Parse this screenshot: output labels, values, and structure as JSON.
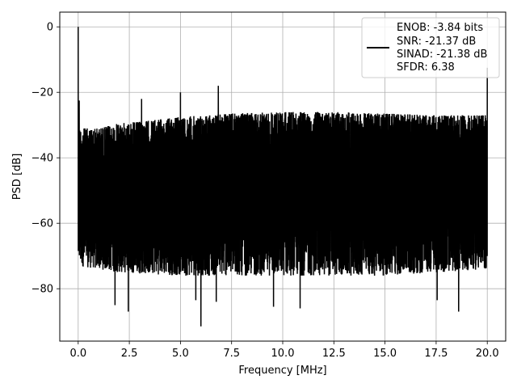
{
  "chart_data": {
    "type": "line",
    "xlabel": "Frequency [MHz]",
    "ylabel": "PSD [dB]",
    "xlim": [
      -0.9,
      20.9
    ],
    "ylim": [
      -96,
      4.5
    ],
    "x_ticks": [
      0.0,
      2.5,
      5.0,
      7.5,
      10.0,
      12.5,
      15.0,
      17.5,
      20.0
    ],
    "x_tick_labels": [
      "0.0",
      "2.5",
      "5.0",
      "7.5",
      "10.0",
      "12.5",
      "15.0",
      "17.5",
      "20.0"
    ],
    "y_ticks": [
      0,
      -20,
      -40,
      -60,
      -80
    ],
    "y_tick_labels": [
      "0",
      "−20",
      "−40",
      "−60",
      "−80"
    ],
    "grid": true,
    "legend_position": "upper right",
    "series": [
      {
        "name": "ENOB: -3.84 bits\nSNR: -21.37 dB\nSINAD: -21.38 dB\nSFDR: 6.38",
        "color": "#000000",
        "x_range": [
          0,
          20
        ],
        "noise_upper_envelope": [
          [
            0.0,
            -31
          ],
          [
            1.0,
            -31
          ],
          [
            2.0,
            -29.5
          ],
          [
            3.0,
            -29
          ],
          [
            5.0,
            -27.5
          ],
          [
            7.5,
            -26.5
          ],
          [
            10.0,
            -26
          ],
          [
            12.5,
            -26
          ],
          [
            15.0,
            -26.5
          ],
          [
            17.5,
            -27
          ],
          [
            20.0,
            -27
          ]
        ],
        "noise_lower_envelope": [
          [
            0.0,
            -73
          ],
          [
            2.0,
            -75
          ],
          [
            5.0,
            -76
          ],
          [
            10.0,
            -76
          ],
          [
            15.0,
            -76
          ],
          [
            20.0,
            -74
          ]
        ],
        "spikes": [
          {
            "x": 0.0,
            "y": 0.0
          },
          {
            "x": 0.05,
            "y": -22.5
          },
          {
            "x": 3.1,
            "y": -22.0
          },
          {
            "x": 5.0,
            "y": -20.0
          },
          {
            "x": 6.85,
            "y": -18.0
          },
          {
            "x": 20.0,
            "y": -12.5
          }
        ],
        "dips": [
          {
            "x": 1.8,
            "y": -85.0
          },
          {
            "x": 2.45,
            "y": -87.0
          },
          {
            "x": 5.75,
            "y": -83.5
          },
          {
            "x": 6.0,
            "y": -91.5
          },
          {
            "x": 6.75,
            "y": -84.0
          },
          {
            "x": 9.55,
            "y": -85.5
          },
          {
            "x": 10.85,
            "y": -86.0
          },
          {
            "x": 17.55,
            "y": -83.5
          },
          {
            "x": 18.6,
            "y": -87.0
          }
        ]
      }
    ]
  },
  "legend": {
    "lines": [
      "ENOB: -3.84 bits",
      "SNR: -21.37 dB",
      "SINAD: -21.38 dB",
      "SFDR: 6.38"
    ]
  }
}
